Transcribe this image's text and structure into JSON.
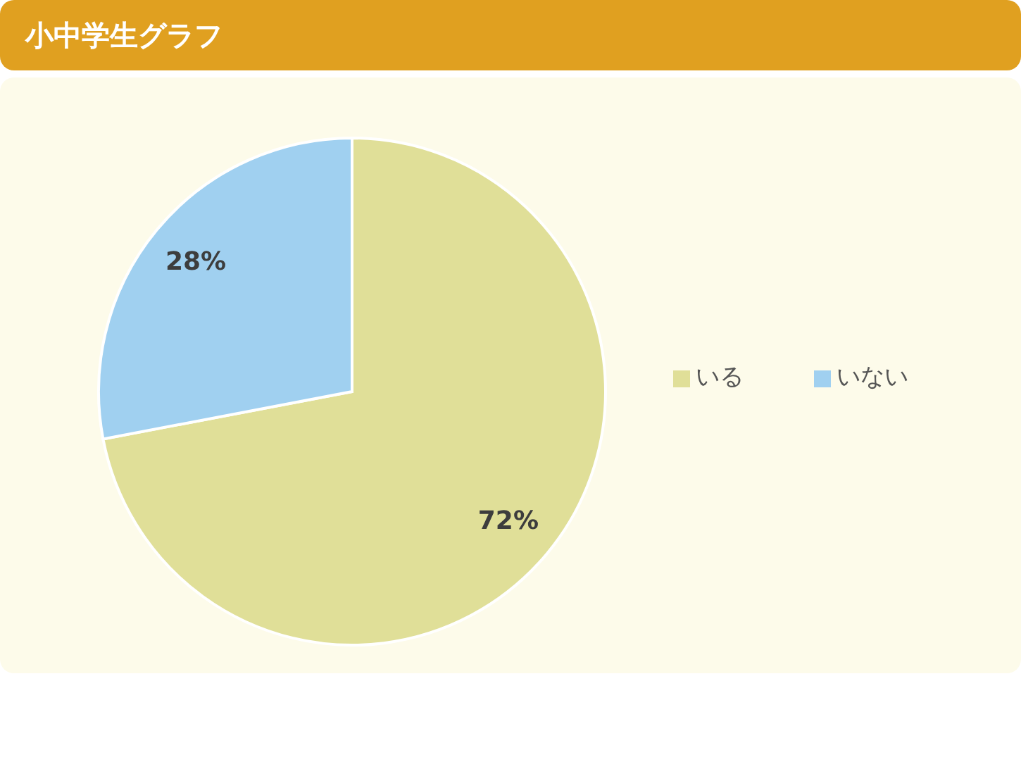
{
  "chart_data": {
    "type": "pie",
    "title": "小中学生グラフ",
    "categories": [
      "いる",
      "いない"
    ],
    "values": [
      72,
      28
    ],
    "colors": [
      "#e0df98",
      "#a0d0f0"
    ],
    "value_labels": [
      "72%",
      "28%"
    ],
    "legend": "right"
  }
}
